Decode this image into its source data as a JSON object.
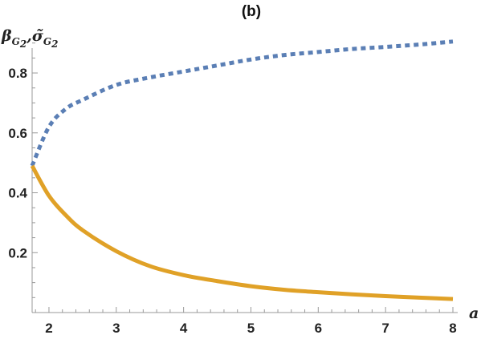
{
  "chart_data": {
    "type": "line",
    "title": "(b)",
    "xlabel": "a",
    "ylabel": {
      "beta": "β",
      "beta_sub": "G",
      "beta_subsub": "2",
      "sep": ",",
      "sigma": "σ̃",
      "sigma_sub": "G",
      "sigma_subsub": "2"
    },
    "xlim": [
      1.75,
      8
    ],
    "ylim": [
      0,
      0.95
    ],
    "x_ticks": [
      2,
      3,
      4,
      5,
      6,
      7,
      8
    ],
    "x_tick_labels": [
      "2",
      "3",
      "4",
      "5",
      "6",
      "7",
      "8"
    ],
    "y_ticks": [
      0.2,
      0.4,
      0.6,
      0.8
    ],
    "y_tick_labels": [
      "0.2",
      "0.4",
      "0.6",
      "0.8"
    ],
    "grid": false,
    "series": [
      {
        "color": "#5b7fb5",
        "style": "dotted",
        "x": [
          1.75,
          2.0,
          2.25,
          2.5,
          3.0,
          3.5,
          4.0,
          4.5,
          5.0,
          5.5,
          6.0,
          6.5,
          7.0,
          7.5,
          8.0
        ],
        "y": [
          0.49,
          0.62,
          0.68,
          0.71,
          0.76,
          0.785,
          0.805,
          0.825,
          0.845,
          0.86,
          0.87,
          0.88,
          0.887,
          0.895,
          0.905
        ]
      },
      {
        "color": "#e0a127",
        "style": "solid",
        "x": [
          1.75,
          2.0,
          2.25,
          2.5,
          3.0,
          3.5,
          4.0,
          4.5,
          5.0,
          5.5,
          6.0,
          6.5,
          7.0,
          7.5,
          8.0
        ],
        "y": [
          0.49,
          0.39,
          0.325,
          0.275,
          0.205,
          0.155,
          0.125,
          0.105,
          0.088,
          0.076,
          0.068,
          0.061,
          0.055,
          0.05,
          0.045
        ]
      }
    ]
  }
}
